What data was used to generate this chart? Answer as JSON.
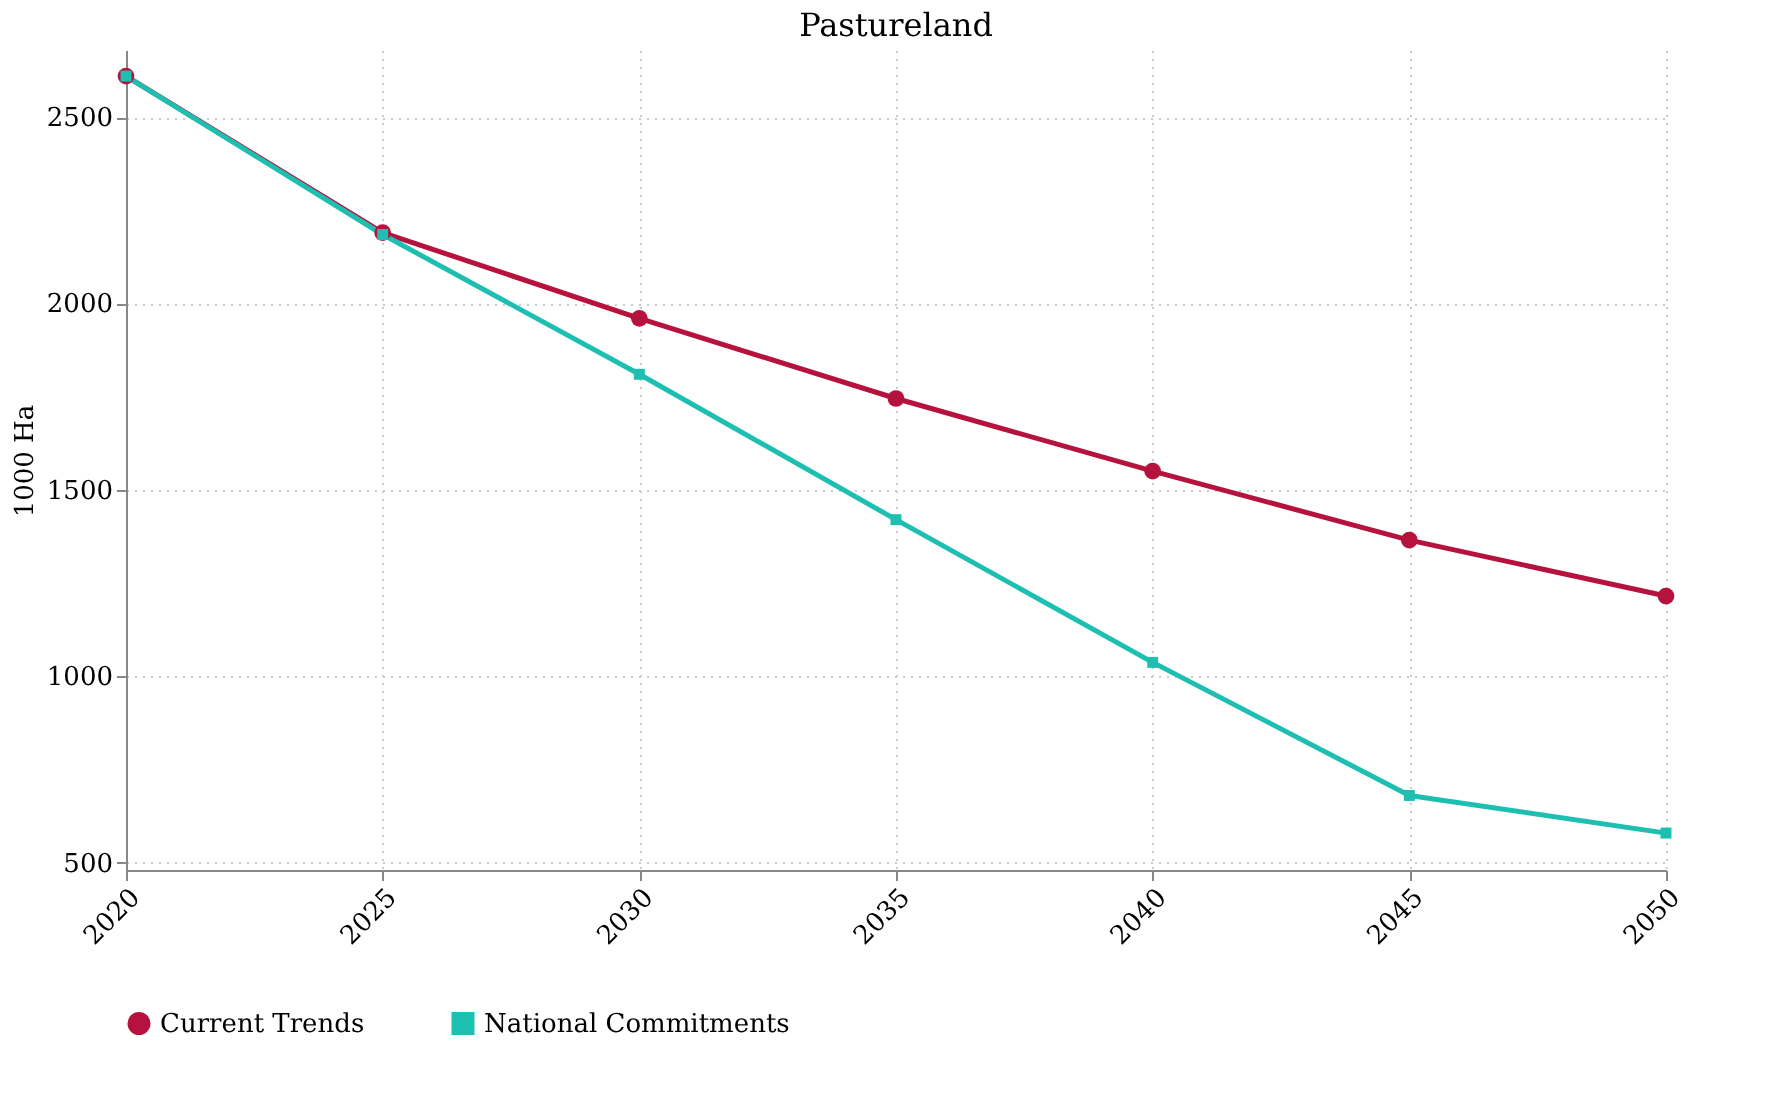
{
  "chart_data": {
    "type": "line",
    "title": "Pastureland",
    "ylabel": "1000 Ha",
    "x": [
      2020,
      2025,
      2030,
      2035,
      2040,
      2045,
      2050
    ],
    "series": [
      {
        "name": "Current Trends",
        "color": "#b5123e",
        "marker": "circle",
        "values": [
          2610,
          2190,
          1960,
          1745,
          1550,
          1365,
          1215
        ]
      },
      {
        "name": "National Commitments",
        "color": "#1dbfb0",
        "marker": "square",
        "values": [
          2610,
          2185,
          1810,
          1420,
          1037,
          680,
          579
        ]
      }
    ],
    "xlim": [
      2020,
      2050
    ],
    "xticks": [
      2020,
      2025,
      2030,
      2035,
      2040,
      2045,
      2050
    ],
    "ylim": [
      480,
      2680
    ],
    "yticks": [
      500,
      1000,
      1500,
      2000,
      2500
    ],
    "grid": true,
    "legend": "bottom",
    "line_style": "solid"
  }
}
